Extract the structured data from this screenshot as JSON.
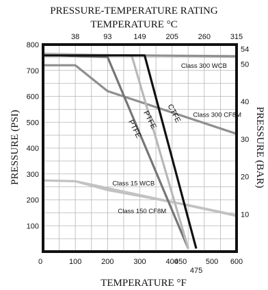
{
  "chart_data": {
    "type": "line",
    "title": "PRESSURE-TEMPERATURE RATING",
    "top_axis_title": "TEMPERATURE",
    "top_axis_unit": "°C",
    "xlabel": "TEMPERATURE",
    "xlabel_unit": "°F",
    "ylabel": "PRESSURE (PSI)",
    "y2label": "PRESSURE (BAR)",
    "xlim": [
      0,
      600
    ],
    "ylim": [
      0,
      800
    ],
    "y2lim": [
      0,
      55.16
    ],
    "grid": true,
    "x_ticks": [
      {
        "value": 0,
        "label": "0"
      },
      {
        "value": 100,
        "label": "100"
      },
      {
        "value": 200,
        "label": "200"
      },
      {
        "value": 300,
        "label": "300"
      },
      {
        "value": 400,
        "label": "400"
      },
      {
        "value": 450,
        "label": "450"
      },
      {
        "value": 475,
        "label": "475"
      },
      {
        "value": 500,
        "label": "500"
      },
      {
        "value": 600,
        "label": "600"
      }
    ],
    "y_ticks": [
      {
        "value": 100,
        "label": "100"
      },
      {
        "value": 200,
        "label": "200"
      },
      {
        "value": 300,
        "label": "300"
      },
      {
        "value": 400,
        "label": "400"
      },
      {
        "value": 500,
        "label": "500"
      },
      {
        "value": 600,
        "label": "600"
      },
      {
        "value": 700,
        "label": "700"
      },
      {
        "value": 800,
        "label": "800"
      }
    ],
    "top_ticks": [
      {
        "value": 100,
        "label": "38"
      },
      {
        "value": 200,
        "label": "93"
      },
      {
        "value": 300,
        "label": "149"
      },
      {
        "value": 400,
        "label": "205"
      },
      {
        "value": 500,
        "label": "260"
      },
      {
        "value": 600,
        "label": "315"
      }
    ],
    "right_ticks": [
      {
        "value": 10,
        "label": "10"
      },
      {
        "value": 20,
        "label": "20"
      },
      {
        "value": 30,
        "label": "30"
      },
      {
        "value": 40,
        "label": "40"
      },
      {
        "value": 50,
        "label": "50"
      },
      {
        "value": 54,
        "label": "54"
      }
    ],
    "grid_x": [
      0,
      50,
      100,
      150,
      200,
      250,
      300,
      350,
      400,
      450,
      500,
      550,
      600
    ],
    "grid_y": [
      0,
      50,
      100,
      150,
      200,
      250,
      300,
      350,
      400,
      450,
      500,
      550,
      600,
      650,
      700,
      750,
      800
    ],
    "series": [
      {
        "name": "Class 300 WCB",
        "color": "#8f8f8f",
        "width": 3.2,
        "points": [
          [
            0,
            760
          ],
          [
            100,
            760
          ],
          [
            600,
            755
          ]
        ]
      },
      {
        "name": "Class 300 CF8M",
        "color": "#8f8f8f",
        "width": 3.2,
        "points": [
          [
            0,
            720
          ],
          [
            100,
            720
          ],
          [
            200,
            620
          ],
          [
            600,
            455
          ]
        ]
      },
      {
        "name": "Class 15 WCB",
        "color": "#c2c2c2",
        "width": 3.2,
        "points": [
          [
            0,
            275
          ],
          [
            100,
            272
          ],
          [
            600,
            138
          ]
        ]
      },
      {
        "name": "Class 150 CF8M",
        "color": "#c2c2c2",
        "width": 3.2,
        "points": [
          [
            0,
            275
          ],
          [
            100,
            272
          ],
          [
            200,
            238
          ],
          [
            450,
            180
          ],
          [
            600,
            140
          ]
        ]
      },
      {
        "name": "PTFE",
        "color": "#767676",
        "width": 3.2,
        "points": [
          [
            0,
            760
          ],
          [
            200,
            752
          ],
          [
            450,
            12
          ]
        ]
      },
      {
        "name": "PTFE",
        "color": "#b8b8b8",
        "width": 3.2,
        "points": [
          [
            0,
            765
          ],
          [
            275,
            757
          ],
          [
            450,
            12
          ]
        ]
      },
      {
        "name": "CTFE",
        "color": "#111111",
        "width": 3.2,
        "points": [
          [
            0,
            758
          ],
          [
            315,
            758
          ],
          [
            475,
            12
          ]
        ]
      }
    ],
    "annotations": [
      {
        "text": "Class 300 WCB",
        "x": 428,
        "y": 710,
        "anchor": "start",
        "rotate": 0,
        "kind": "lbl"
      },
      {
        "text": "Class 300 CF8M",
        "x": 465,
        "y": 520,
        "anchor": "start",
        "rotate": 0,
        "kind": "lbl"
      },
      {
        "text": "Class 15 WCB",
        "x": 215,
        "y": 255,
        "anchor": "start",
        "rotate": 0,
        "kind": "lbl"
      },
      {
        "text": "Class 150 CF8M",
        "x": 232,
        "y": 148,
        "anchor": "start",
        "rotate": 0,
        "kind": "lbl"
      },
      {
        "text": "PTFE",
        "x": 278,
        "y": 470,
        "anchor": "middle",
        "rotate": 63,
        "kind": "curve"
      },
      {
        "text": "PTFE",
        "x": 325,
        "y": 505,
        "anchor": "middle",
        "rotate": 63,
        "kind": "curve"
      },
      {
        "text": "CTFE",
        "x": 400,
        "y": 530,
        "anchor": "middle",
        "rotate": 63,
        "kind": "curve"
      }
    ]
  }
}
